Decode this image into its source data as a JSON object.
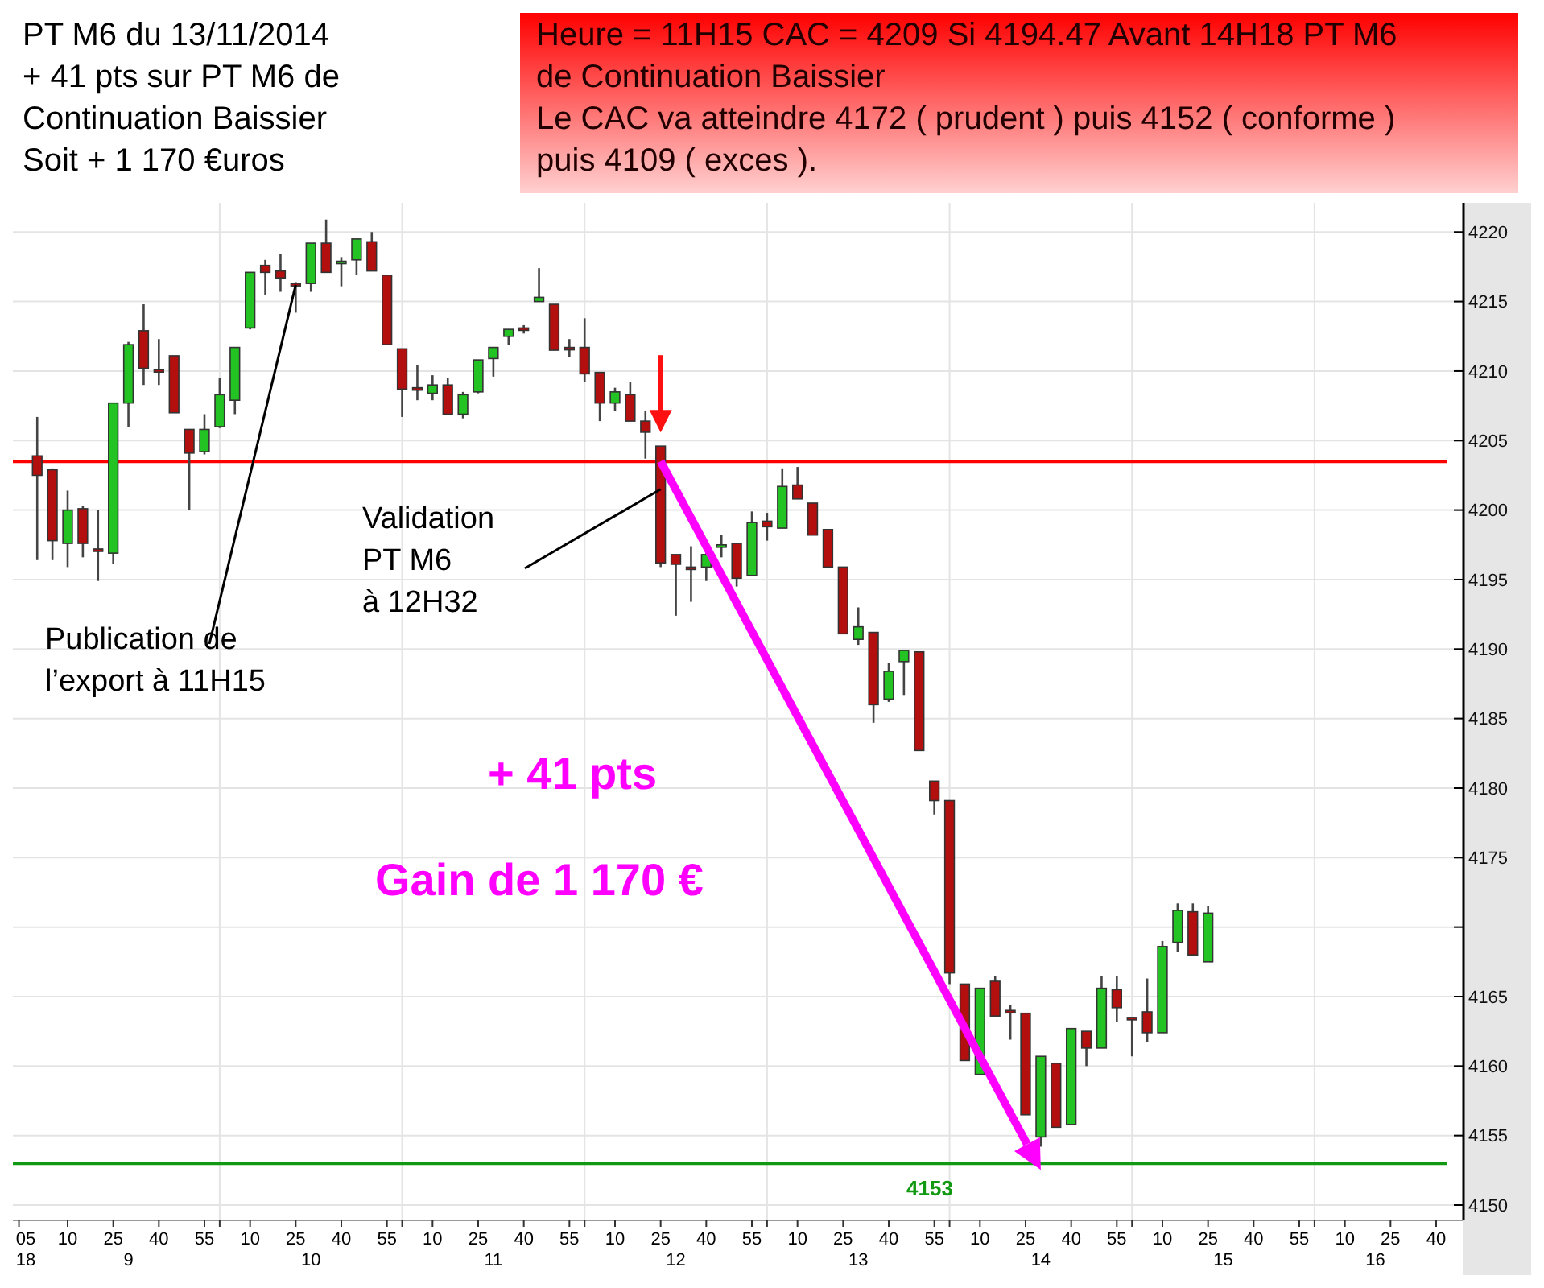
{
  "chart_data": {
    "type": "candlestick",
    "title": "PT M6 du 13/11/2014\n+ 41 pts sur PT M6 de\nContinuation Baissier\nSoit + 1 170 €uros",
    "subtitle": "Heure = 11H15 CAC = 4209 Si 4194.47 Avant 14H18 PT M6\nde Continuation Baissier\nLe CAC va atteindre 4172 ( prudent ) puis 4152 ( conforme )\npuis 4109 ( exces ).",
    "x": [
      "2014-11-13T09:00",
      "2014-11-13T09:05",
      "2014-11-13T09:10",
      "2014-11-13T09:15",
      "2014-11-13T09:20",
      "2014-11-13T09:25",
      "2014-11-13T09:30",
      "2014-11-13T09:35",
      "2014-11-13T09:40",
      "2014-11-13T09:45",
      "2014-11-13T09:50",
      "2014-11-13T09:55",
      "2014-11-13T10:00",
      "2014-11-13T10:05",
      "2014-11-13T10:10",
      "2014-11-13T10:15",
      "2014-11-13T10:20",
      "2014-11-13T10:25",
      "2014-11-13T10:30",
      "2014-11-13T10:35",
      "2014-11-13T10:40",
      "2014-11-13T10:45",
      "2014-11-13T10:50",
      "2014-11-13T10:55",
      "2014-11-13T11:00",
      "2014-11-13T11:05",
      "2014-11-13T11:10",
      "2014-11-13T11:15",
      "2014-11-13T11:20",
      "2014-11-13T11:25",
      "2014-11-13T11:30",
      "2014-11-13T11:35",
      "2014-11-13T11:40",
      "2014-11-13T11:45",
      "2014-11-13T11:50",
      "2014-11-13T11:55",
      "2014-11-13T12:00",
      "2014-11-13T12:05",
      "2014-11-13T12:10",
      "2014-11-13T12:15",
      "2014-11-13T12:20",
      "2014-11-13T12:25",
      "2014-11-13T12:30",
      "2014-11-13T12:35",
      "2014-11-13T12:40",
      "2014-11-13T12:45",
      "2014-11-13T12:50",
      "2014-11-13T12:55",
      "2014-11-13T13:00",
      "2014-11-13T13:05",
      "2014-11-13T13:10",
      "2014-11-13T13:15",
      "2014-11-13T13:20",
      "2014-11-13T13:25",
      "2014-11-13T13:30",
      "2014-11-13T13:35",
      "2014-11-13T13:40",
      "2014-11-13T13:45",
      "2014-11-13T13:50",
      "2014-11-13T13:55",
      "2014-11-13T14:00",
      "2014-11-13T14:05",
      "2014-11-13T14:10",
      "2014-11-13T14:15",
      "2014-11-13T14:20",
      "2014-11-13T14:25",
      "2014-11-13T14:30",
      "2014-11-13T14:35",
      "2014-11-13T14:40",
      "2014-11-13T14:45",
      "2014-11-13T14:50",
      "2014-11-13T14:55",
      "2014-11-13T15:00",
      "2014-11-13T15:05",
      "2014-11-13T15:10",
      "2014-11-13T15:15",
      "2014-11-13T15:20",
      "2014-11-13T15:25"
    ],
    "ohlc": [
      [
        4203.9,
        4206.7,
        4196.4,
        4202.5
      ],
      [
        4202.9,
        4203.0,
        4196.4,
        4197.8
      ],
      [
        4197.6,
        4201.4,
        4195.9,
        4200.0
      ],
      [
        4200.1,
        4200.3,
        4196.6,
        4197.6
      ],
      [
        4197.2,
        4200.0,
        4194.9,
        4197.1
      ],
      [
        4196.9,
        4207.7,
        4196.1,
        4207.7
      ],
      [
        4207.7,
        4212.1,
        4206.0,
        4211.9
      ],
      [
        4212.9,
        4214.8,
        4209.0,
        4210.2
      ],
      [
        4210.1,
        4212.3,
        4209.0,
        4210.0
      ],
      [
        4211.1,
        4211.1,
        4207.0,
        4207.0
      ],
      [
        4205.8,
        4205.8,
        4200.0,
        4204.1
      ],
      [
        4204.2,
        4206.9,
        4204.0,
        4205.8
      ],
      [
        4206.0,
        4209.5,
        4205.9,
        4208.3
      ],
      [
        4207.9,
        4211.7,
        4206.9,
        4211.7
      ],
      [
        4213.1,
        4217.1,
        4213.0,
        4217.1
      ],
      [
        4217.6,
        4218.0,
        4215.5,
        4217.1
      ],
      [
        4217.2,
        4218.4,
        4215.7,
        4216.7
      ],
      [
        4216.3,
        4216.4,
        4214.2,
        4216.2
      ],
      [
        4216.3,
        4219.2,
        4215.7,
        4219.2
      ],
      [
        4219.2,
        4220.9,
        4217.1,
        4217.1
      ],
      [
        4217.8,
        4218.2,
        4216.1,
        4217.9
      ],
      [
        4218.0,
        4219.5,
        4216.9,
        4219.5
      ],
      [
        4219.3,
        4220.0,
        4217.2,
        4217.2
      ],
      [
        4216.9,
        4216.9,
        4211.9,
        4211.9
      ],
      [
        4211.6,
        4211.6,
        4206.7,
        4208.7
      ],
      [
        4208.8,
        4210.4,
        4207.9,
        4208.7
      ],
      [
        4208.4,
        4209.7,
        4207.9,
        4209.0
      ],
      [
        4209.0,
        4209.5,
        4206.9,
        4206.9
      ],
      [
        4206.9,
        4208.5,
        4206.6,
        4208.3
      ],
      [
        4208.5,
        4210.8,
        4208.4,
        4210.8
      ],
      [
        4210.9,
        4211.7,
        4209.6,
        4211.7
      ],
      [
        4212.5,
        4213.0,
        4211.9,
        4213.0
      ],
      [
        4213.1,
        4213.3,
        4212.7,
        4213.0
      ],
      [
        4215.0,
        4217.4,
        4215.0,
        4215.3
      ],
      [
        4214.8,
        4214.8,
        4211.5,
        4211.5
      ],
      [
        4211.7,
        4212.3,
        4211.0,
        4211.6
      ],
      [
        4211.7,
        4213.8,
        4209.2,
        4209.8
      ],
      [
        4209.9,
        4209.9,
        4206.4,
        4207.7
      ],
      [
        4207.7,
        4208.8,
        4207.1,
        4208.5
      ],
      [
        4208.3,
        4209.2,
        4206.4,
        4206.4
      ],
      [
        4206.4,
        4207.1,
        4203.7,
        4205.6
      ],
      [
        4204.6,
        4204.6,
        4195.9,
        4196.2
      ],
      [
        4196.8,
        4196.8,
        4192.4,
        4196.1
      ],
      [
        4195.9,
        4197.4,
        4193.4,
        4195.8
      ],
      [
        4195.9,
        4197.0,
        4194.9,
        4196.8
      ],
      [
        4197.4,
        4198.2,
        4196.6,
        4197.5
      ],
      [
        4197.6,
        4197.6,
        4194.5,
        4195.1
      ],
      [
        4195.3,
        4199.9,
        4195.3,
        4199.1
      ],
      [
        4199.2,
        4199.8,
        4197.8,
        4198.8
      ],
      [
        4198.7,
        4203.0,
        4198.7,
        4201.7
      ],
      [
        4201.8,
        4203.1,
        4200.8,
        4200.8
      ],
      [
        4200.5,
        4200.5,
        4198.2,
        4198.2
      ],
      [
        4198.6,
        4198.6,
        4195.9,
        4195.9
      ],
      [
        4195.9,
        4195.9,
        4191.1,
        4191.1
      ],
      [
        4190.7,
        4193.0,
        4190.3,
        4191.6
      ],
      [
        4191.2,
        4191.2,
        4184.7,
        4186.0
      ],
      [
        4186.4,
        4189.0,
        4186.2,
        4188.4
      ],
      [
        4189.1,
        4189.9,
        4186.7,
        4189.9
      ],
      [
        4189.8,
        4189.8,
        4182.7,
        4182.7
      ],
      [
        4180.5,
        4180.5,
        4178.1,
        4179.1
      ],
      [
        4179.1,
        4179.1,
        4165.9,
        4166.7
      ],
      [
        4165.9,
        4165.9,
        4160.4,
        4160.4
      ],
      [
        4159.4,
        4165.6,
        4159.4,
        4165.6
      ],
      [
        4166.1,
        4166.5,
        4163.6,
        4163.6
      ],
      [
        4164.0,
        4164.4,
        4161.9,
        4163.9
      ],
      [
        4163.8,
        4163.8,
        4156.5,
        4156.5
      ],
      [
        4154.9,
        4160.7,
        4154.2,
        4160.7
      ],
      [
        4160.2,
        4160.2,
        4155.6,
        4155.6
      ],
      [
        4155.8,
        4162.7,
        4155.8,
        4162.7
      ],
      [
        4162.5,
        4162.5,
        4160.0,
        4161.3
      ],
      [
        4161.3,
        4166.5,
        4161.3,
        4165.6
      ],
      [
        4165.5,
        4166.5,
        4163.2,
        4164.2
      ],
      [
        4163.5,
        4163.5,
        4160.7,
        4163.4
      ],
      [
        4163.9,
        4166.3,
        4161.7,
        4162.4
      ],
      [
        4162.4,
        4169.0,
        4162.4,
        4168.6
      ],
      [
        4168.9,
        4171.7,
        4168.2,
        4171.2
      ],
      [
        4171.1,
        4171.7,
        4168.0,
        4168.0
      ],
      [
        4167.5,
        4171.5,
        4167.5,
        4171.0
      ]
    ],
    "xlim": [
      "2014-11-13T08:52",
      "2014-11-13T16:49"
    ],
    "xticks": [
      {
        "value": "2014-11-13T08:54",
        "label": "05"
      },
      {
        "value": "2014-11-13T09:10",
        "label": "10"
      },
      {
        "value": "2014-11-13T09:25",
        "label": "25"
      },
      {
        "value": "2014-11-13T09:40",
        "label": "40"
      },
      {
        "value": "2014-11-13T09:55",
        "label": "55"
      },
      {
        "value": "2014-11-13T10:00",
        "label": null
      },
      {
        "value": "2014-11-13T10:10",
        "label": "10"
      },
      {
        "value": "2014-11-13T10:25",
        "label": "25"
      },
      {
        "value": "2014-11-13T10:40",
        "label": "40"
      },
      {
        "value": "2014-11-13T10:55",
        "label": "55"
      },
      {
        "value": "2014-11-13T11:00",
        "label": null
      },
      {
        "value": "2014-11-13T11:10",
        "label": "10"
      },
      {
        "value": "2014-11-13T11:25",
        "label": "25"
      },
      {
        "value": "2014-11-13T11:40",
        "label": "40"
      },
      {
        "value": "2014-11-13T11:55",
        "label": "55"
      },
      {
        "value": "2014-11-13T12:00",
        "label": null
      },
      {
        "value": "2014-11-13T12:10",
        "label": "10"
      },
      {
        "value": "2014-11-13T12:25",
        "label": "25"
      },
      {
        "value": "2014-11-13T12:40",
        "label": "40"
      },
      {
        "value": "2014-11-13T12:55",
        "label": "55"
      },
      {
        "value": "2014-11-13T13:00",
        "label": null
      },
      {
        "value": "2014-11-13T13:10",
        "label": "10"
      },
      {
        "value": "2014-11-13T13:25",
        "label": "25"
      },
      {
        "value": "2014-11-13T13:40",
        "label": "40"
      },
      {
        "value": "2014-11-13T13:55",
        "label": "55"
      },
      {
        "value": "2014-11-13T14:00",
        "label": null
      },
      {
        "value": "2014-11-13T14:10",
        "label": "10"
      },
      {
        "value": "2014-11-13T14:25",
        "label": "25"
      },
      {
        "value": "2014-11-13T14:40",
        "label": "40"
      },
      {
        "value": "2014-11-13T14:55",
        "label": "55"
      },
      {
        "value": "2014-11-13T15:00",
        "label": null
      },
      {
        "value": "2014-11-13T15:10",
        "label": "10"
      },
      {
        "value": "2014-11-13T15:25",
        "label": "25"
      },
      {
        "value": "2014-11-13T15:40",
        "label": "40"
      },
      {
        "value": "2014-11-13T15:55",
        "label": "55"
      },
      {
        "value": "2014-11-13T16:00",
        "label": null
      },
      {
        "value": "2014-11-13T16:10",
        "label": "10"
      },
      {
        "value": "2014-11-13T16:25",
        "label": "25"
      },
      {
        "value": "2014-11-13T16:40",
        "label": "40"
      }
    ],
    "x2lim": [
      "2014-11-13T08:52",
      "2014-11-13T16:49"
    ],
    "x2ticks": [
      {
        "value": "2014-11-13T08:54",
        "label": "18"
      },
      {
        "value": "2014-11-13T09:30",
        "label": "9"
      },
      {
        "value": "2014-11-13T10:30",
        "label": "10"
      },
      {
        "value": "2014-11-13T11:30",
        "label": "11"
      },
      {
        "value": "2014-11-13T12:30",
        "label": "12"
      },
      {
        "value": "2014-11-13T13:30",
        "label": "13"
      },
      {
        "value": "2014-11-13T14:30",
        "label": "14"
      },
      {
        "value": "2014-11-13T15:30",
        "label": "15"
      },
      {
        "value": "2014-11-13T16:20",
        "label": "16"
      }
    ],
    "ylim": [
      4148.9,
      4222.1
    ],
    "yticks": [
      4150,
      4155,
      4160,
      4165,
      {
        "value": 4170,
        "label": null
      },
      4175,
      4180,
      4185,
      4190,
      4195,
      4200,
      4205,
      4210,
      4215,
      4220
    ],
    "grid": true,
    "ref_lines": [
      {
        "axis": "y",
        "value": 4203.5,
        "label": null,
        "color": "#ff0000"
      },
      {
        "axis": "y",
        "value": 4153,
        "label": "4153",
        "color": "#119911"
      }
    ],
    "annotations": [
      {
        "text": "Publication de\nl’export à 11H15",
        "x": "2014-11-13T10:25",
        "y": 4216.2
      },
      {
        "text": "Validation\nPT M6\nà 12H32",
        "x": "2014-11-13T12:25",
        "y": 4201.5
      },
      "+ 41 pts",
      "Gain de 1 170 €"
    ]
  }
}
